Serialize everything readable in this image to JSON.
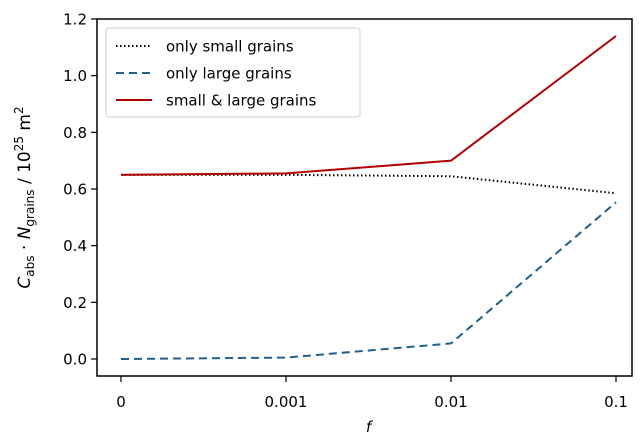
{
  "chart_data": {
    "type": "line",
    "xlabel": "f",
    "ylabel": {
      "parts": [
        {
          "t": "C",
          "italic": true
        },
        {
          "t": "abs",
          "sub": true
        },
        {
          "t": " · "
        },
        {
          "t": "N",
          "italic": true
        },
        {
          "t": "grains",
          "sub": true
        },
        {
          "t": " / 10"
        },
        {
          "t": "25",
          "sup": true
        },
        {
          "t": " m"
        },
        {
          "t": "2",
          "sup": true
        }
      ]
    },
    "categories": [
      "0",
      "0.001",
      "0.01",
      "0.1"
    ],
    "ylim": [
      -0.06,
      1.2
    ],
    "yticks": [
      0.0,
      0.2,
      0.4,
      0.6,
      0.8,
      1.0,
      1.2
    ],
    "ytick_labels": [
      "0.0",
      "0.2",
      "0.4",
      "0.6",
      "0.8",
      "1.0",
      "1.2"
    ],
    "grid": false,
    "legend_position": "upper-left",
    "series": [
      {
        "name": "only small grains",
        "values": [
          0.65,
          0.65,
          0.645,
          0.585
        ],
        "color": "#000000",
        "style": "dotted"
      },
      {
        "name": "only large grains",
        "values": [
          0.0,
          0.005,
          0.055,
          0.553
        ],
        "color": "#1f5f8b",
        "style": "dashed"
      },
      {
        "name": "small & large grains",
        "values": [
          0.65,
          0.655,
          0.7,
          1.14
        ],
        "color": "#b20000",
        "style": "solid"
      }
    ]
  }
}
